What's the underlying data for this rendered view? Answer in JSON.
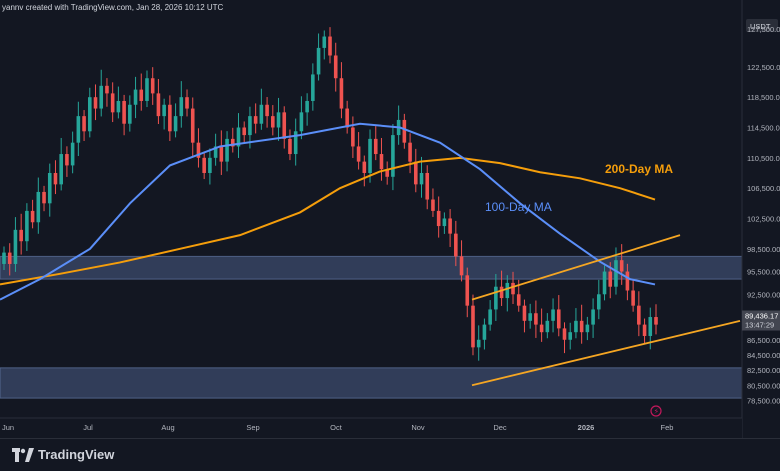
{
  "header": {
    "created_line": "yannv created with TradingView.com, Jan 28, 2026 10:12 UTC"
  },
  "footer": {
    "brand": "TradingView"
  },
  "price_scale": {
    "currency": "USDT",
    "last_price": "89,436.17",
    "countdown": "13:47:29",
    "ticks": [
      "127,500.00",
      "122,500.00",
      "118,500.00",
      "114,500.00",
      "110,500.00",
      "106,500.00",
      "102,500.00",
      "98,500.00",
      "95,500.00",
      "92,500.00",
      "86,500.00",
      "84,500.00",
      "82,500.00",
      "80,500.00",
      "78,500.00"
    ]
  },
  "time_axis": {
    "labels": [
      "Jun",
      "Jul",
      "Aug",
      "Sep",
      "Oct",
      "Nov",
      "Dec",
      "2026",
      "Feb"
    ]
  },
  "colors": {
    "background": "#131722",
    "up": "#26a69a",
    "down": "#ef5350",
    "ma100": "#5b8ff9",
    "ma200": "#f59e0b",
    "zone": "#4a5d86",
    "channel": "#f5a623"
  },
  "annotations": {
    "ma100_label": "100-Day MA",
    "ma200_label": "200-Day MA"
  },
  "chart_data": {
    "type": "candlestick",
    "y_scale": "price (USDT)",
    "ylim": [
      77500,
      130000
    ],
    "zones": [
      {
        "from": 94500,
        "to": 97500
      },
      {
        "from": 78800,
        "to": 82800
      }
    ],
    "ma100": [
      [
        0,
        91800
      ],
      [
        40,
        94500
      ],
      [
        90,
        98500
      ],
      [
        130,
        104500
      ],
      [
        170,
        109500
      ],
      [
        220,
        112000
      ],
      [
        300,
        113500
      ],
      [
        360,
        115000
      ],
      [
        400,
        114500
      ],
      [
        440,
        112500
      ],
      [
        480,
        109000
      ],
      [
        520,
        104500
      ],
      [
        560,
        100500
      ],
      [
        600,
        96800
      ],
      [
        630,
        94500
      ],
      [
        655,
        93800
      ]
    ],
    "ma200": [
      [
        0,
        93800
      ],
      [
        60,
        95200
      ],
      [
        120,
        96700
      ],
      [
        180,
        98500
      ],
      [
        240,
        100300
      ],
      [
        300,
        103300
      ],
      [
        340,
        106500
      ],
      [
        380,
        108700
      ],
      [
        420,
        110000
      ],
      [
        460,
        110500
      ],
      [
        500,
        109800
      ],
      [
        540,
        108600
      ],
      [
        580,
        107800
      ],
      [
        620,
        106500
      ],
      [
        655,
        105000
      ]
    ],
    "channel": {
      "upper": [
        [
          472,
          91800
        ],
        [
          680,
          100300
        ]
      ],
      "lower": [
        [
          472,
          80500
        ],
        [
          740,
          89000
        ]
      ]
    },
    "candle_closes": [
      98000,
      96500,
      101000,
      99500,
      103500,
      102000,
      106000,
      104500,
      108500,
      107000,
      111000,
      109500,
      112500,
      116000,
      114000,
      118500,
      117000,
      120000,
      119000,
      116500,
      118000,
      115000,
      117500,
      119500,
      118000,
      121000,
      119000,
      116000,
      117500,
      114000,
      116000,
      118500,
      117000,
      112500,
      110500,
      108500,
      110500,
      112000,
      110000,
      113000,
      112000,
      114500,
      113500,
      116000,
      115000,
      117500,
      116000,
      114500,
      116500,
      113000,
      111000,
      114000,
      116500,
      118000,
      121500,
      125000,
      126500,
      124000,
      121000,
      117000,
      114500,
      112000,
      110000,
      108500,
      113000,
      111000,
      109000,
      108000,
      113500,
      115500,
      112500,
      110000,
      107000,
      108500,
      105000,
      103500,
      101500,
      102500,
      100500,
      97500,
      95000,
      91000,
      85500,
      86500,
      88500,
      90500,
      93500,
      92000,
      94000,
      92500,
      91000,
      89000,
      90000,
      88500,
      87500,
      89000,
      90500,
      88000,
      86500,
      87500,
      89000,
      87500,
      88500,
      90500,
      92500,
      95500,
      93500,
      97000,
      95500,
      93000,
      91000,
      88500,
      87000,
      89500,
      88500
    ]
  }
}
